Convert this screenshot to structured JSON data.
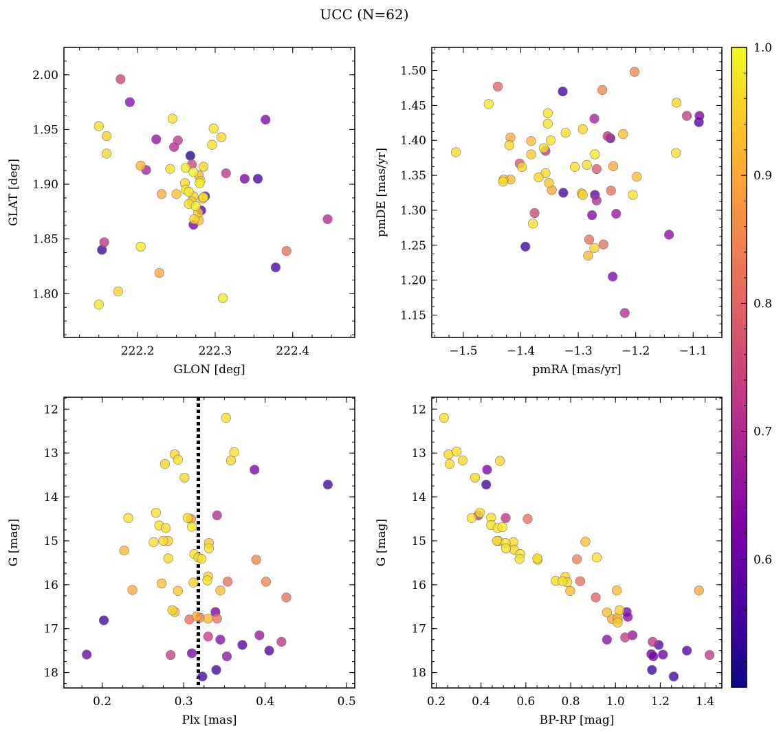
{
  "figure_title": "UCC (N=62)",
  "colorbar": {
    "colormap": "plasma",
    "range": [
      0.5,
      1.0
    ],
    "ticks": [
      0.6,
      0.7,
      0.8,
      0.9,
      1.0
    ],
    "tick_labels": [
      "0.6",
      "0.7",
      "0.8",
      "0.9",
      "1.0"
    ]
  },
  "chart_data": [
    {
      "type": "scatter",
      "id": "glon_glat",
      "xlabel": "GLON [deg]",
      "ylabel": "GLAT [deg]",
      "xlim": [
        222.105,
        222.48
      ],
      "ylim": [
        1.76,
        2.025
      ],
      "xticks": [
        222.2,
        222.3,
        222.4
      ],
      "xtick_labels": [
        "222.2",
        "222.3",
        "222.4"
      ],
      "yticks": [
        1.8,
        1.85,
        1.9,
        1.95,
        2.0
      ],
      "ytick_labels": [
        "1.80",
        "1.85",
        "1.90",
        "1.95",
        "2.00"
      ],
      "invert_y": false,
      "points": [
        [
          222.178,
          1.996,
          0.75
        ],
        [
          222.19,
          1.975,
          0.64
        ],
        [
          222.365,
          1.959,
          0.62
        ],
        [
          222.15,
          1.953,
          0.97
        ],
        [
          222.245,
          1.96,
          0.97
        ],
        [
          222.16,
          1.944,
          0.95
        ],
        [
          222.224,
          1.941,
          0.65
        ],
        [
          222.252,
          1.94,
          0.72
        ],
        [
          222.298,
          1.951,
          0.97
        ],
        [
          222.308,
          1.943,
          0.96
        ],
        [
          222.247,
          1.934,
          0.7
        ],
        [
          222.16,
          1.928,
          0.96
        ],
        [
          222.268,
          1.926,
          0.52
        ],
        [
          222.296,
          1.936,
          0.97
        ],
        [
          222.204,
          1.917,
          0.92
        ],
        [
          222.211,
          1.913,
          0.68
        ],
        [
          222.242,
          1.914,
          0.97
        ],
        [
          222.262,
          1.915,
          0.98
        ],
        [
          222.285,
          1.916,
          0.96
        ],
        [
          222.27,
          1.918,
          0.75
        ],
        [
          222.272,
          1.911,
          0.99
        ],
        [
          222.314,
          1.91,
          0.72
        ],
        [
          222.338,
          1.905,
          0.62
        ],
        [
          222.355,
          1.905,
          0.56
        ],
        [
          222.279,
          1.908,
          0.92
        ],
        [
          222.281,
          1.903,
          0.96
        ],
        [
          222.261,
          1.901,
          0.96
        ],
        [
          222.262,
          1.895,
          0.98
        ],
        [
          222.266,
          1.893,
          0.98
        ],
        [
          222.28,
          1.901,
          0.99
        ],
        [
          222.231,
          1.891,
          0.9
        ],
        [
          222.25,
          1.891,
          0.93
        ],
        [
          222.287,
          1.889,
          0.6
        ],
        [
          222.272,
          1.889,
          0.95
        ],
        [
          222.284,
          1.887,
          0.93
        ],
        [
          222.27,
          1.884,
          0.96
        ],
        [
          222.285,
          1.888,
          0.98
        ],
        [
          222.266,
          1.882,
          0.97
        ],
        [
          222.275,
          1.88,
          0.99
        ],
        [
          222.278,
          1.874,
          0.95
        ],
        [
          222.282,
          1.876,
          0.58
        ],
        [
          222.279,
          1.867,
          0.92
        ],
        [
          222.273,
          1.868,
          0.96
        ],
        [
          222.272,
          1.863,
          0.62
        ],
        [
          222.445,
          1.868,
          0.7
        ],
        [
          222.157,
          1.847,
          0.72
        ],
        [
          222.154,
          1.84,
          0.55
        ],
        [
          222.204,
          1.843,
          0.98
        ],
        [
          222.392,
          1.839,
          0.82
        ],
        [
          222.378,
          1.824,
          0.56
        ],
        [
          222.228,
          1.819,
          0.9
        ],
        [
          222.175,
          1.802,
          0.95
        ],
        [
          222.31,
          1.796,
          0.98
        ],
        [
          222.15,
          1.79,
          0.98
        ]
      ]
    },
    {
      "type": "scatter",
      "id": "pmra_pmde",
      "xlabel": "pmRA [mas/yr]",
      "ylabel": "pmDE [mas/yr]",
      "xlim": [
        -1.555,
        -1.05
      ],
      "ylim": [
        1.118,
        1.533
      ],
      "xticks": [
        -1.5,
        -1.4,
        -1.3,
        -1.2,
        -1.1
      ],
      "xtick_labels": [
        "−1.5",
        "−1.4",
        "−1.3",
        "−1.2",
        "−1.1"
      ],
      "yticks": [
        1.15,
        1.2,
        1.25,
        1.3,
        1.35,
        1.4,
        1.45,
        1.5
      ],
      "ytick_labels": [
        "1.15",
        "1.20",
        "1.25",
        "1.30",
        "1.35",
        "1.40",
        "1.45",
        "1.50"
      ],
      "invert_y": false,
      "points": [
        [
          -1.202,
          1.498,
          0.85
        ],
        [
          -1.44,
          1.477,
          0.8
        ],
        [
          -1.327,
          1.47,
          0.55
        ],
        [
          -1.258,
          1.472,
          0.85
        ],
        [
          -1.456,
          1.452,
          0.98
        ],
        [
          -1.129,
          1.454,
          0.96
        ],
        [
          -1.353,
          1.439,
          0.97
        ],
        [
          -1.111,
          1.435,
          0.73
        ],
        [
          -1.089,
          1.435,
          0.62
        ],
        [
          -1.272,
          1.431,
          0.68
        ],
        [
          -1.353,
          1.424,
          0.97
        ],
        [
          -1.09,
          1.426,
          0.56
        ],
        [
          -1.292,
          1.416,
          0.96
        ],
        [
          -1.322,
          1.411,
          0.97
        ],
        [
          -1.222,
          1.409,
          0.93
        ],
        [
          -1.249,
          1.406,
          0.72
        ],
        [
          -1.418,
          1.404,
          0.9
        ],
        [
          -1.244,
          1.403,
          0.6
        ],
        [
          -1.513,
          1.383,
          0.96
        ],
        [
          -1.382,
          1.399,
          0.92
        ],
        [
          -1.348,
          1.4,
          0.97
        ],
        [
          -1.42,
          1.393,
          0.96
        ],
        [
          -1.36,
          1.389,
          0.97
        ],
        [
          -1.357,
          1.385,
          0.72
        ],
        [
          -1.13,
          1.382,
          0.97
        ],
        [
          -1.382,
          1.38,
          0.95
        ],
        [
          -1.271,
          1.38,
          0.98
        ],
        [
          -1.402,
          1.367,
          0.78
        ],
        [
          -1.398,
          1.362,
          0.96
        ],
        [
          -1.306,
          1.362,
          0.97
        ],
        [
          -1.285,
          1.365,
          0.97
        ],
        [
          -1.239,
          1.363,
          0.9
        ],
        [
          -1.268,
          1.359,
          0.78
        ],
        [
          -1.357,
          1.353,
          0.96
        ],
        [
          -1.369,
          1.347,
          0.96
        ],
        [
          -1.198,
          1.348,
          0.93
        ],
        [
          -1.351,
          1.339,
          0.94
        ],
        [
          -1.431,
          1.341,
          0.96
        ],
        [
          -1.43,
          1.344,
          0.94
        ],
        [
          -1.418,
          1.344,
          0.92
        ],
        [
          -1.346,
          1.329,
          0.9
        ],
        [
          -1.243,
          1.328,
          0.82
        ],
        [
          -1.294,
          1.324,
          0.93
        ],
        [
          -1.326,
          1.325,
          0.55
        ],
        [
          -1.292,
          1.322,
          0.96
        ],
        [
          -1.271,
          1.322,
          0.58
        ],
        [
          -1.205,
          1.322,
          0.97
        ],
        [
          -1.268,
          1.314,
          0.7
        ],
        [
          -1.376,
          1.296,
          0.75
        ],
        [
          -1.234,
          1.295,
          0.66
        ],
        [
          -1.276,
          1.293,
          0.63
        ],
        [
          -1.379,
          1.281,
          0.97
        ],
        [
          -1.142,
          1.265,
          0.64
        ],
        [
          -1.281,
          1.258,
          0.82
        ],
        [
          -1.256,
          1.251,
          0.82
        ],
        [
          -1.392,
          1.248,
          0.55
        ],
        [
          -1.272,
          1.246,
          0.96
        ],
        [
          -1.283,
          1.235,
          0.92
        ],
        [
          -1.24,
          1.205,
          0.63
        ],
        [
          -1.219,
          1.153,
          0.7
        ]
      ]
    },
    {
      "type": "scatter",
      "id": "plx_g",
      "xlabel": "Plx [mas]",
      "ylabel": "G [mag]",
      "xlim": [
        0.153,
        0.51
      ],
      "ylim": [
        11.73,
        18.35
      ],
      "xticks": [
        0.2,
        0.3,
        0.4,
        0.5
      ],
      "xtick_labels": [
        "0.2",
        "0.3",
        "0.4",
        "0.5"
      ],
      "yticks": [
        12,
        13,
        14,
        15,
        16,
        17,
        18
      ],
      "ytick_labels": [
        "12",
        "13",
        "14",
        "15",
        "16",
        "17",
        "18"
      ],
      "invert_y": true,
      "reference_line": {
        "x": 0.318,
        "style": "dotted"
      },
      "points": [
        [
          0.352,
          12.2,
          0.97
        ],
        [
          0.362,
          12.98,
          0.97
        ],
        [
          0.289,
          13.03,
          0.96
        ],
        [
          0.293,
          13.15,
          0.97
        ],
        [
          0.358,
          13.17,
          0.96
        ],
        [
          0.277,
          13.25,
          0.96
        ],
        [
          0.387,
          13.38,
          0.62
        ],
        [
          0.301,
          13.56,
          0.96
        ],
        [
          0.477,
          13.72,
          0.55
        ],
        [
          0.266,
          14.36,
          0.97
        ],
        [
          0.232,
          14.48,
          0.97
        ],
        [
          0.305,
          14.48,
          0.97
        ],
        [
          0.309,
          14.5,
          0.86
        ],
        [
          0.341,
          14.42,
          0.7
        ],
        [
          0.27,
          14.65,
          0.97
        ],
        [
          0.278,
          14.71,
          0.97
        ],
        [
          0.31,
          14.68,
          0.98
        ],
        [
          0.275,
          15.0,
          0.96
        ],
        [
          0.281,
          15.0,
          0.95
        ],
        [
          0.263,
          15.03,
          0.97
        ],
        [
          0.331,
          15.05,
          0.94
        ],
        [
          0.227,
          15.22,
          0.92
        ],
        [
          0.331,
          15.17,
          0.97
        ],
        [
          0.313,
          15.3,
          0.97
        ],
        [
          0.318,
          15.38,
          0.97
        ],
        [
          0.322,
          15.41,
          0.97
        ],
        [
          0.281,
          15.4,
          0.96
        ],
        [
          0.389,
          15.43,
          0.85
        ],
        [
          0.33,
          15.81,
          0.96
        ],
        [
          0.312,
          15.95,
          0.95
        ],
        [
          0.329,
          15.9,
          0.97
        ],
        [
          0.273,
          15.97,
          0.93
        ],
        [
          0.354,
          15.93,
          0.82
        ],
        [
          0.401,
          15.93,
          0.85
        ],
        [
          0.237,
          16.12,
          0.9
        ],
        [
          0.293,
          16.14,
          0.94
        ],
        [
          0.345,
          16.13,
          0.93
        ],
        [
          0.426,
          16.29,
          0.82
        ],
        [
          0.286,
          16.58,
          0.95
        ],
        [
          0.289,
          16.62,
          0.93
        ],
        [
          0.339,
          16.62,
          0.62
        ],
        [
          0.316,
          16.72,
          0.9
        ],
        [
          0.32,
          16.75,
          0.85
        ],
        [
          0.33,
          16.77,
          0.92
        ],
        [
          0.341,
          16.77,
          0.82
        ],
        [
          0.307,
          16.79,
          0.82
        ],
        [
          0.202,
          16.81,
          0.55
        ],
        [
          0.33,
          17.18,
          0.73
        ],
        [
          0.393,
          17.15,
          0.66
        ],
        [
          0.345,
          17.25,
          0.64
        ],
        [
          0.42,
          17.3,
          0.72
        ],
        [
          0.372,
          17.37,
          0.57
        ],
        [
          0.405,
          17.5,
          0.57
        ],
        [
          0.181,
          17.59,
          0.6
        ],
        [
          0.284,
          17.6,
          0.73
        ],
        [
          0.31,
          17.56,
          0.62
        ],
        [
          0.353,
          17.63,
          0.65
        ],
        [
          0.34,
          17.94,
          0.55
        ],
        [
          0.323,
          18.09,
          0.55
        ]
      ]
    },
    {
      "type": "scatter",
      "id": "bprp_g",
      "xlabel": "BP-RP [mag]",
      "ylabel": "G [mag]",
      "xlim": [
        0.18,
        1.475
      ],
      "ylim": [
        11.73,
        18.35
      ],
      "xticks": [
        0.2,
        0.4,
        0.6,
        0.8,
        1.0,
        1.2,
        1.4
      ],
      "xtick_labels": [
        "0.2",
        "0.4",
        "0.6",
        "0.8",
        "1.0",
        "1.2",
        "1.4"
      ],
      "yticks": [
        12,
        13,
        14,
        15,
        16,
        17,
        18
      ],
      "ytick_labels": [
        "12",
        "13",
        "14",
        "15",
        "16",
        "17",
        "18"
      ],
      "invert_y": true,
      "points": [
        [
          0.235,
          12.2,
          0.97
        ],
        [
          0.255,
          13.03,
          0.96
        ],
        [
          0.291,
          12.97,
          0.97
        ],
        [
          0.26,
          13.25,
          0.96
        ],
        [
          0.318,
          13.17,
          0.96
        ],
        [
          0.484,
          13.18,
          0.96
        ],
        [
          0.427,
          13.38,
          0.62
        ],
        [
          0.423,
          13.72,
          0.55
        ],
        [
          0.373,
          13.56,
          0.96
        ],
        [
          0.358,
          14.48,
          0.97
        ],
        [
          0.388,
          14.42,
          0.72
        ],
        [
          0.395,
          14.36,
          0.97
        ],
        [
          0.445,
          14.47,
          0.97
        ],
        [
          0.51,
          14.48,
          0.72
        ],
        [
          0.608,
          14.5,
          0.82
        ],
        [
          0.445,
          14.64,
          0.97
        ],
        [
          0.474,
          14.71,
          0.97
        ],
        [
          0.495,
          14.69,
          0.98
        ],
        [
          0.471,
          15.0,
          0.96
        ],
        [
          0.478,
          15.0,
          0.95
        ],
        [
          0.51,
          15.05,
          0.97
        ],
        [
          0.544,
          15.03,
          0.96
        ],
        [
          0.511,
          15.17,
          0.97
        ],
        [
          0.548,
          15.2,
          0.96
        ],
        [
          0.575,
          15.3,
          0.97
        ],
        [
          0.572,
          15.41,
          0.97
        ],
        [
          0.651,
          15.4,
          0.97
        ],
        [
          0.653,
          15.43,
          0.96
        ],
        [
          0.866,
          15.02,
          0.93
        ],
        [
          0.916,
          15.38,
          0.97
        ],
        [
          0.828,
          15.42,
          0.84
        ],
        [
          0.733,
          15.91,
          0.97
        ],
        [
          0.776,
          15.82,
          0.96
        ],
        [
          0.764,
          15.92,
          0.97
        ],
        [
          0.785,
          15.94,
          0.96
        ],
        [
          0.843,
          15.92,
          0.82
        ],
        [
          0.798,
          16.14,
          0.93
        ],
        [
          1.006,
          16.13,
          0.93
        ],
        [
          1.373,
          16.13,
          0.9
        ],
        [
          0.912,
          16.29,
          0.8
        ],
        [
          0.962,
          16.63,
          0.93
        ],
        [
          1.018,
          16.58,
          0.95
        ],
        [
          1.05,
          16.62,
          0.62
        ],
        [
          0.985,
          16.78,
          0.9
        ],
        [
          1.01,
          16.79,
          0.88
        ],
        [
          1.01,
          16.75,
          0.92
        ],
        [
          1.01,
          16.86,
          0.95
        ],
        [
          1.055,
          16.73,
          0.64
        ],
        [
          0.962,
          17.25,
          0.64
        ],
        [
          1.043,
          17.2,
          0.73
        ],
        [
          1.076,
          17.15,
          0.66
        ],
        [
          1.166,
          17.3,
          0.72
        ],
        [
          1.193,
          17.37,
          0.57
        ],
        [
          1.16,
          17.58,
          0.6
        ],
        [
          1.169,
          17.63,
          0.62
        ],
        [
          1.212,
          17.59,
          0.6
        ],
        [
          1.319,
          17.5,
          0.57
        ],
        [
          1.42,
          17.6,
          0.72
        ],
        [
          1.163,
          17.94,
          0.55
        ],
        [
          1.26,
          18.09,
          0.55
        ]
      ]
    }
  ]
}
